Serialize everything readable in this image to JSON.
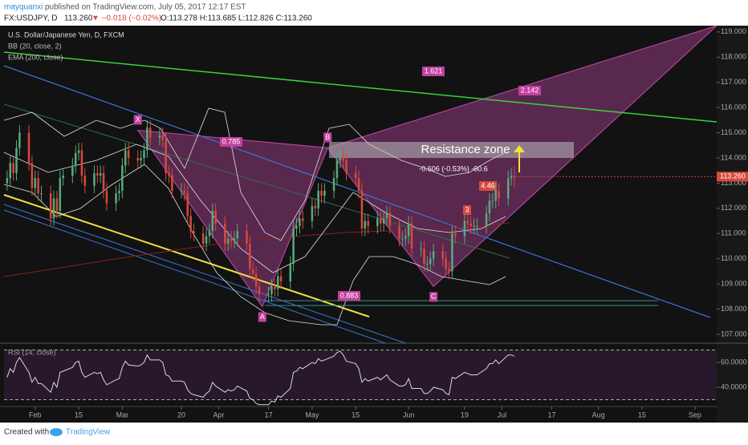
{
  "header": {
    "user": "mayquanxi",
    "published": "published on TradingView.com, July 05, 2017 12:17 EST",
    "symbol": "FX:USDJPY, D",
    "last": "113.260",
    "change": "▼ −0.018 (−0.02%)",
    "ohlc": "O:113.278 H:113.685 L:112.826 C:113.260"
  },
  "footer": {
    "created": "Created with",
    "brand": "TradingView"
  },
  "chart_data": [
    {
      "type": "candlestick",
      "title": "U.S. Dollar/Japanese Yen, D, FXCM",
      "indicators": [
        "BB (20, close, 2)",
        "EMA (200, close)"
      ],
      "up_color": "#5aa97e",
      "down_color": "#d9493c",
      "x": [
        23,
        24,
        25,
        26,
        27,
        30,
        31,
        32,
        33,
        34,
        37,
        38,
        39,
        40,
        41,
        44,
        45,
        46,
        47,
        48,
        51,
        52,
        53,
        54,
        55,
        58,
        59,
        60,
        61,
        62,
        65,
        66,
        67,
        68,
        69,
        72,
        73,
        74,
        75,
        76,
        79,
        80,
        81,
        82,
        83,
        86,
        87,
        88,
        89,
        90,
        93,
        94,
        95,
        96,
        97,
        100,
        101,
        102,
        103,
        104,
        107,
        108,
        109,
        110,
        111,
        114,
        115,
        116,
        117,
        118,
        121,
        122,
        123,
        124,
        125,
        128,
        129,
        130,
        131,
        132,
        135,
        136,
        137,
        138,
        139,
        142,
        143,
        144,
        145,
        146,
        149,
        150,
        151,
        152,
        153,
        156,
        157,
        158,
        159,
        160,
        163,
        164,
        165,
        166,
        167,
        170,
        171,
        172,
        173,
        174,
        177,
        178,
        179,
        180,
        181,
        184,
        185,
        186
      ],
      "open": [
        113.0,
        113.2,
        113.8,
        113.4,
        114.4,
        115.0,
        113.8,
        112.8,
        113.2,
        112.6,
        112.6,
        111.6,
        112.4,
        111.9,
        113.2,
        113.3,
        113.7,
        114.2,
        114.3,
        113.3,
        112.9,
        113.4,
        113.3,
        113.4,
        112.7,
        112.2,
        112.6,
        112.7,
        113.7,
        114.3,
        114.0,
        113.9,
        114.0,
        114.3,
        115.2,
        114.8,
        114.9,
        114.7,
        113.4,
        113.3,
        112.7,
        112.7,
        112.6,
        111.7,
        111.1,
        111.0,
        110.6,
        110.9,
        111.1,
        111.9,
        111.4,
        110.6,
        110.8,
        110.7,
        110.8,
        111.1,
        110.6,
        109.6,
        109.4,
        108.9,
        108.6,
        108.6,
        108.9,
        108.8,
        109.3,
        109.1,
        109.8,
        111.2,
        111.3,
        111.6,
        111.5,
        112.1,
        112.0,
        112.7,
        112.5,
        112.7,
        113.2,
        113.9,
        114.1,
        113.9,
        113.4,
        113.2,
        112.7,
        111.2,
        111.5,
        111.3,
        111.6,
        111.4,
        111.6,
        111.8,
        111.3,
        110.8,
        110.8,
        110.9,
        111.4,
        110.4,
        110.4,
        109.8,
        109.8,
        110.0,
        110.3,
        110.0,
        109.6,
        109.5,
        111.0,
        110.9,
        111.5,
        111.4,
        111.3,
        111.3,
        111.3,
        111.8,
        112.3,
        112.3,
        112.7,
        112.4,
        113.2,
        113.278
      ],
      "high": [
        113.5,
        114.1,
        114.1,
        114.7,
        115.3,
        115.3,
        114.1,
        113.5,
        113.5,
        112.9,
        112.9,
        112.7,
        112.7,
        113.5,
        113.6,
        114.0,
        114.5,
        114.6,
        114.6,
        113.6,
        113.7,
        113.7,
        113.7,
        113.7,
        113.0,
        112.9,
        113.0,
        114.0,
        114.6,
        114.6,
        114.3,
        114.3,
        114.6,
        115.5,
        115.5,
        115.2,
        115.2,
        115.0,
        113.7,
        113.6,
        113.0,
        113.0,
        112.9,
        112.0,
        111.4,
        111.3,
        111.2,
        111.4,
        112.2,
        112.2,
        111.7,
        111.1,
        111.1,
        111.1,
        111.4,
        111.4,
        110.9,
        109.9,
        109.7,
        109.2,
        108.9,
        109.2,
        109.2,
        109.6,
        109.6,
        110.1,
        111.5,
        111.6,
        111.9,
        111.9,
        112.4,
        112.4,
        113.0,
        113.0,
        113.0,
        113.5,
        114.2,
        114.4,
        114.4,
        114.2,
        113.7,
        113.5,
        113.0,
        111.8,
        111.8,
        111.9,
        111.9,
        111.9,
        112.1,
        112.1,
        111.6,
        111.1,
        111.2,
        111.7,
        111.7,
        110.7,
        110.7,
        110.1,
        110.3,
        110.6,
        110.6,
        110.3,
        109.9,
        111.3,
        111.3,
        111.8,
        111.8,
        111.7,
        111.6,
        111.6,
        112.1,
        112.6,
        112.6,
        113.0,
        113.0,
        113.5,
        113.6,
        113.685
      ],
      "low": [
        112.7,
        112.9,
        113.1,
        113.1,
        114.1,
        113.5,
        112.5,
        112.5,
        112.3,
        112.3,
        111.3,
        111.3,
        111.6,
        111.6,
        112.9,
        113.0,
        113.4,
        113.9,
        113.0,
        112.6,
        112.6,
        113.0,
        113.0,
        112.4,
        111.9,
        111.9,
        112.3,
        112.4,
        113.4,
        113.7,
        113.6,
        113.6,
        113.7,
        114.0,
        114.5,
        114.5,
        114.4,
        113.1,
        113.0,
        112.4,
        112.4,
        112.3,
        111.4,
        110.8,
        110.7,
        110.3,
        110.3,
        110.6,
        110.8,
        111.1,
        110.3,
        110.3,
        110.4,
        110.4,
        110.5,
        110.3,
        109.3,
        109.1,
        108.6,
        108.3,
        108.3,
        108.3,
        108.5,
        108.5,
        108.8,
        108.8,
        109.5,
        110.9,
        111.0,
        111.2,
        111.2,
        111.7,
        111.7,
        112.2,
        112.2,
        112.4,
        112.9,
        113.6,
        113.6,
        113.1,
        112.9,
        112.4,
        110.9,
        110.9,
        111.0,
        111.0,
        111.1,
        111.1,
        111.3,
        111.0,
        110.5,
        110.5,
        110.5,
        110.6,
        110.1,
        110.1,
        109.5,
        109.5,
        109.5,
        109.7,
        109.7,
        109.3,
        109.2,
        109.2,
        110.6,
        110.6,
        111.1,
        111.0,
        111.0,
        111.0,
        111.0,
        111.5,
        112.0,
        112.0,
        112.1,
        112.1,
        112.9,
        112.826
      ],
      "close": [
        113.2,
        113.8,
        113.4,
        114.4,
        115.0,
        113.8,
        112.8,
        113.2,
        112.6,
        112.6,
        111.6,
        112.4,
        111.9,
        113.2,
        113.3,
        113.7,
        114.2,
        114.3,
        113.3,
        112.9,
        113.4,
        113.3,
        113.4,
        112.7,
        112.2,
        112.6,
        112.7,
        113.7,
        114.3,
        114.0,
        113.9,
        114.0,
        114.3,
        115.2,
        114.8,
        114.9,
        114.7,
        113.4,
        113.3,
        112.7,
        112.7,
        112.6,
        111.7,
        111.1,
        111.0,
        110.6,
        110.9,
        111.1,
        111.9,
        111.4,
        110.6,
        110.8,
        110.7,
        110.8,
        111.1,
        110.6,
        109.6,
        109.4,
        108.9,
        108.6,
        108.6,
        108.9,
        108.8,
        109.3,
        109.1,
        109.8,
        111.2,
        111.3,
        111.6,
        111.5,
        112.1,
        112.0,
        112.7,
        112.5,
        112.7,
        113.2,
        113.9,
        114.1,
        113.9,
        113.4,
        113.2,
        112.7,
        111.2,
        111.5,
        111.3,
        111.6,
        111.4,
        111.6,
        111.8,
        111.3,
        110.8,
        110.8,
        110.9,
        111.4,
        110.4,
        110.4,
        109.8,
        109.8,
        110.0,
        110.3,
        110.0,
        109.6,
        109.5,
        111.0,
        110.9,
        111.5,
        111.4,
        111.3,
        111.3,
        111.3,
        111.8,
        112.3,
        112.3,
        112.7,
        112.4,
        113.2,
        113.3,
        113.26
      ],
      "price_label": "113.260",
      "xlim": [
        22,
        251
      ],
      "xticks": [
        {
          "value": 32,
          "label": "Feb"
        },
        {
          "value": 46,
          "label": "15"
        },
        {
          "value": 60,
          "label": "Mar"
        },
        {
          "value": 79,
          "label": "20"
        },
        {
          "value": 91,
          "label": "Apr"
        },
        {
          "value": 107,
          "label": "17"
        },
        {
          "value": 121,
          "label": "May"
        },
        {
          "value": 135,
          "label": "15"
        },
        {
          "value": 152,
          "label": "Jun"
        },
        {
          "value": 170,
          "label": "19"
        },
        {
          "value": 182,
          "label": "Jul"
        },
        {
          "value": 198,
          "label": "17"
        },
        {
          "value": 213,
          "label": "Aug"
        },
        {
          "value": 227,
          "label": "15"
        },
        {
          "value": 244,
          "label": "Sep"
        }
      ],
      "ylim": [
        106.65,
        119.25
      ],
      "yticks": [
        {
          "value": 107,
          "label": "107.000"
        },
        {
          "value": 108,
          "label": "108.000"
        },
        {
          "value": 109,
          "label": "109.000"
        },
        {
          "value": 110,
          "label": "110.000"
        },
        {
          "value": 111,
          "label": "111.000"
        },
        {
          "value": 112,
          "label": "112.000"
        },
        {
          "value": 113,
          "label": "113.000"
        },
        {
          "value": 114,
          "label": "114.000"
        },
        {
          "value": 115,
          "label": "115.000"
        },
        {
          "value": 116,
          "label": "116.000"
        },
        {
          "value": 117,
          "label": "117.000"
        },
        {
          "value": 118,
          "label": "118.000"
        },
        {
          "value": 119,
          "label": "119.000"
        }
      ],
      "pattern": {
        "color": "#b0449a",
        "points": [
          {
            "label": "X",
            "x": 65,
            "y": 115.1
          },
          {
            "label": "A",
            "x": 105,
            "y": 108.1
          },
          {
            "label": "B",
            "x": 126,
            "y": 114.4
          },
          {
            "label": "C",
            "x": 160,
            "y": 108.9
          },
          {
            "x": 251,
            "y": 119.25
          }
        ],
        "ratios": [
          0.785,
          1.621,
          0.883,
          2.142
        ]
      },
      "annotations": [
        "Resistance zone",
        "-0.606 (-0.53%) -60.6",
        "4.46",
        "3"
      ]
    },
    {
      "type": "line",
      "title": "RSI (14, close)",
      "color": "#d8d8d8",
      "values": [
        48,
        55,
        52,
        60,
        64,
        52,
        44,
        48,
        43,
        43,
        36,
        44,
        40,
        52,
        53,
        56,
        60,
        61,
        52,
        48,
        52,
        51,
        52,
        46,
        42,
        46,
        47,
        56,
        61,
        58,
        57,
        58,
        60,
        66,
        62,
        62,
        60,
        50,
        49,
        45,
        45,
        44,
        38,
        35,
        34,
        32,
        35,
        37,
        44,
        41,
        36,
        38,
        37,
        38,
        41,
        37,
        31,
        30,
        27,
        26,
        26,
        29,
        28,
        33,
        32,
        39,
        52,
        53,
        56,
        55,
        60,
        59,
        63,
        61,
        62,
        65,
        68,
        69,
        66,
        61,
        59,
        55,
        44,
        47,
        45,
        48,
        46,
        48,
        50,
        46,
        41,
        41,
        42,
        47,
        39,
        39,
        35,
        35,
        37,
        40,
        38,
        35,
        34,
        48,
        47,
        52,
        51,
        50,
        50,
        50,
        55,
        59,
        59,
        62,
        59,
        66,
        66,
        65
      ],
      "ylim": [
        25.8,
        74.2
      ],
      "yticks": [
        {
          "value": 40,
          "label": "40.0000"
        },
        {
          "value": 60,
          "label": "60.0000"
        }
      ],
      "levels": [
        30,
        70
      ]
    }
  ]
}
